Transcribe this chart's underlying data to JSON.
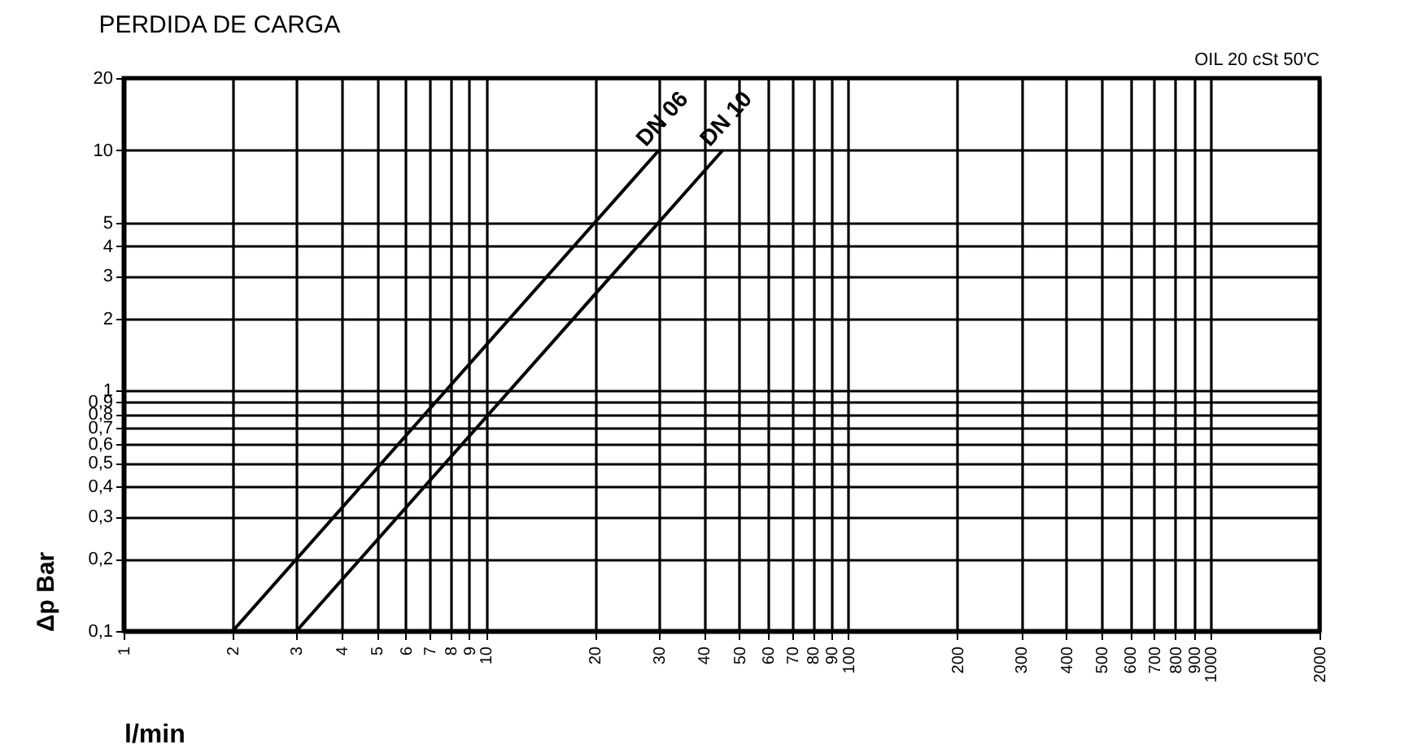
{
  "chart_data": {
    "type": "line",
    "title": "PERDIDA DE CARGA",
    "annotations": [
      "OIL 20 cSt 50'C"
    ],
    "xlabel": "l/min",
    "ylabel": "Δp Bar",
    "log": "xy",
    "grid": true,
    "marker": "none",
    "line_style": "solid",
    "legend": false,
    "series": [
      {
        "name": "DN 06",
        "color": "#000000",
        "x": [
          2,
          30
        ],
        "values": [
          0.1,
          10
        ]
      },
      {
        "name": "DN 10",
        "color": "#000000",
        "x": [
          3,
          45
        ],
        "values": [
          0.1,
          10
        ]
      }
    ],
    "xlim": [
      1,
      2000
    ],
    "xticks": [
      1,
      2,
      3,
      4,
      5,
      6,
      7,
      8,
      9,
      10,
      20,
      30,
      40,
      50,
      60,
      70,
      80,
      90,
      100,
      200,
      300,
      400,
      500,
      600,
      700,
      800,
      900,
      1000,
      2000
    ],
    "ylim": [
      0.1,
      20
    ],
    "yticks": [
      {
        "value": 0.1,
        "label": "0,1"
      },
      {
        "value": 0.2,
        "label": "0,2"
      },
      {
        "value": 0.3,
        "label": "0,3"
      },
      {
        "value": 0.4,
        "label": "0,4"
      },
      {
        "value": 0.5,
        "label": "0,5"
      },
      {
        "value": 0.6,
        "label": "0,6"
      },
      {
        "value": 0.7,
        "label": "0,7"
      },
      {
        "value": 0.8,
        "label": "0,8"
      },
      {
        "value": 0.9,
        "label": "0,9"
      },
      1,
      2,
      3,
      4,
      5,
      10,
      20
    ]
  }
}
